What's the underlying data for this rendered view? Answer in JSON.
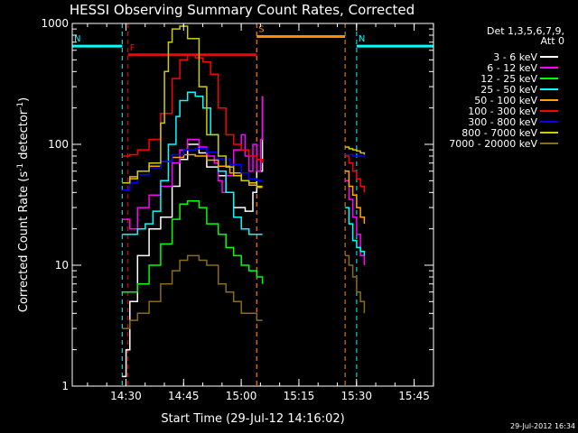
{
  "chart_data": {
    "type": "line",
    "title": "HESSI Observing Summary Count Rates, Corrected",
    "xlabel": "Start Time (29-Jul-12 14:16:02)",
    "ylabel_main": "Corrected Count Rate (s",
    "ylabel_sup1": "-1",
    "ylabel_mid": " detector",
    "ylabel_sup2": "-1",
    "ylabel_end": ")",
    "x_axis": {
      "range_minutes": [
        0,
        94
      ],
      "tick_labels": [
        "14:30",
        "14:45",
        "15:00",
        "15:15",
        "15:30",
        "15:45"
      ],
      "tick_minutes": [
        13.97,
        28.97,
        43.97,
        58.97,
        73.97,
        88.97
      ]
    },
    "y_axis": {
      "scale": "log",
      "range": [
        1,
        1000
      ],
      "tick_labels": [
        "1",
        "10",
        "100",
        "1000"
      ],
      "tick_values": [
        1,
        10,
        100,
        1000
      ]
    },
    "legend_header": [
      "Det 1,3,5,6,7,9,",
      "Att 0"
    ],
    "series": [
      {
        "name": "3 - 6 keV",
        "color": "#ffffff",
        "x": [
          13,
          14,
          15,
          17,
          20,
          23,
          26,
          28,
          30,
          33,
          35,
          38,
          40,
          42,
          44,
          45,
          47,
          48,
          49.5
        ],
        "y": [
          1.2,
          2,
          5,
          12,
          20,
          25,
          45,
          75,
          100,
          85,
          65,
          55,
          40,
          30,
          30,
          28,
          40,
          60,
          250
        ]
      },
      {
        "name": "6 - 12 keV",
        "color": "#ff00ff",
        "x": [
          13,
          15,
          17,
          20,
          23,
          26,
          28,
          30,
          33,
          35,
          37,
          38,
          39,
          40,
          42,
          44,
          45,
          46,
          47,
          48,
          49,
          49.5
        ],
        "y": [
          24,
          20,
          30,
          38,
          45,
          70,
          90,
          110,
          95,
          80,
          70,
          50,
          40,
          55,
          90,
          120,
          80,
          60,
          100,
          60,
          110,
          250
        ],
        "x2": [
          71,
          72,
          73,
          74,
          75,
          76
        ],
        "y2": [
          50,
          35,
          25,
          18,
          12,
          10
        ]
      },
      {
        "name": "12 - 25 keV",
        "color": "#00ff00",
        "x": [
          13,
          15,
          17,
          20,
          23,
          26,
          28,
          30,
          33,
          35,
          38,
          40,
          42,
          44,
          46,
          48,
          49.5
        ],
        "y": [
          6,
          6,
          7,
          10,
          15,
          24,
          32,
          34,
          30,
          22,
          18,
          14,
          12,
          10,
          9,
          8,
          7
        ]
      },
      {
        "name": "25 - 50 keV",
        "color": "#00ffff",
        "x": [
          13,
          15,
          17,
          19,
          21,
          23,
          25,
          27,
          28,
          30,
          32,
          34,
          36,
          38,
          40,
          42,
          44,
          46,
          48,
          49.5
        ],
        "y": [
          18,
          18,
          20,
          22,
          28,
          50,
          100,
          170,
          230,
          270,
          250,
          200,
          120,
          60,
          40,
          25,
          20,
          18,
          18,
          18
        ],
        "x2": [
          71,
          72,
          73,
          74,
          75,
          76
        ],
        "y2": [
          30,
          22,
          16,
          14,
          13,
          12
        ]
      },
      {
        "name": "50 - 100 keV",
        "color": "#ffa500",
        "x": [
          13,
          15,
          17,
          20,
          23,
          26,
          29,
          32,
          35,
          38,
          41,
          44,
          46,
          48,
          49.5
        ],
        "y": [
          48,
          54,
          60,
          66,
          72,
          78,
          82,
          80,
          74,
          66,
          58,
          50,
          46,
          44,
          44
        ],
        "x2": [
          71,
          72,
          73,
          74,
          75,
          76
        ],
        "y2": [
          60,
          45,
          38,
          30,
          25,
          22
        ]
      },
      {
        "name": "100 - 300 keV",
        "color": "#ff0000",
        "x": [
          13,
          15,
          17,
          20,
          23,
          26,
          28,
          30,
          32,
          34,
          36,
          38,
          40,
          42,
          44,
          46,
          48,
          49.5
        ],
        "y": [
          80,
          82,
          90,
          110,
          180,
          350,
          500,
          550,
          520,
          480,
          380,
          200,
          120,
          100,
          90,
          80,
          75,
          70
        ],
        "x2": [
          71,
          72,
          73,
          74,
          75,
          76
        ],
        "y2": [
          80,
          70,
          60,
          52,
          45,
          40
        ]
      },
      {
        "name": "300 - 800 keV",
        "color": "#0000ff",
        "x": [
          13,
          15,
          17,
          20,
          23,
          26,
          29,
          32,
          35,
          38,
          41,
          44,
          46,
          48,
          49.5
        ],
        "y": [
          42,
          48,
          56,
          64,
          72,
          82,
          90,
          92,
          86,
          76,
          68,
          58,
          52,
          50,
          50
        ],
        "x2": [
          71,
          72,
          73,
          74,
          75,
          76
        ],
        "y2": [
          82,
          82,
          80,
          80,
          80,
          78
        ]
      },
      {
        "name": "800 - 7000 keV",
        "color": "#cccc00",
        "x": [
          13,
          15,
          17,
          20,
          23,
          24,
          25,
          26,
          28,
          30,
          33,
          35,
          38,
          40,
          42,
          44,
          46,
          48,
          49.5
        ],
        "y": [
          48,
          52,
          60,
          70,
          150,
          400,
          700,
          900,
          950,
          750,
          300,
          120,
          80,
          65,
          55,
          50,
          48,
          45,
          45
        ],
        "x2": [
          71,
          72,
          73,
          74,
          75,
          76
        ],
        "y2": [
          95,
          92,
          90,
          88,
          85,
          82
        ]
      },
      {
        "name": "7000 - 20000 keV",
        "color": "#8b6b14",
        "x": [
          13,
          15,
          17,
          20,
          23,
          26,
          28,
          30,
          33,
          35,
          38,
          40,
          42,
          44,
          46,
          48,
          49.5
        ],
        "y": [
          3,
          3.5,
          4,
          5,
          7,
          9,
          11,
          12,
          11,
          10,
          7,
          6,
          5,
          4,
          4,
          3.5,
          3.5
        ],
        "x2": [
          71,
          72,
          73,
          74,
          75,
          76
        ],
        "y2": [
          12,
          10,
          8,
          6,
          5,
          4
        ]
      }
    ],
    "flags": [
      {
        "label": "N",
        "color": "#00ffff",
        "level": 650,
        "x_start": 0,
        "x_end": 13
      },
      {
        "label": "N",
        "color": "#00ffff",
        "level": 650,
        "x_start": 74,
        "x_end": 94
      },
      {
        "label": "F",
        "color": "#ff0000",
        "level": 550,
        "x_start": 14.5,
        "x_end": 48
      },
      {
        "label": "S",
        "color": "#ff8c00",
        "level": 780,
        "x_start": 48,
        "x_end": 71
      }
    ]
  },
  "timestamp": "29-Jul-2012 16:34"
}
